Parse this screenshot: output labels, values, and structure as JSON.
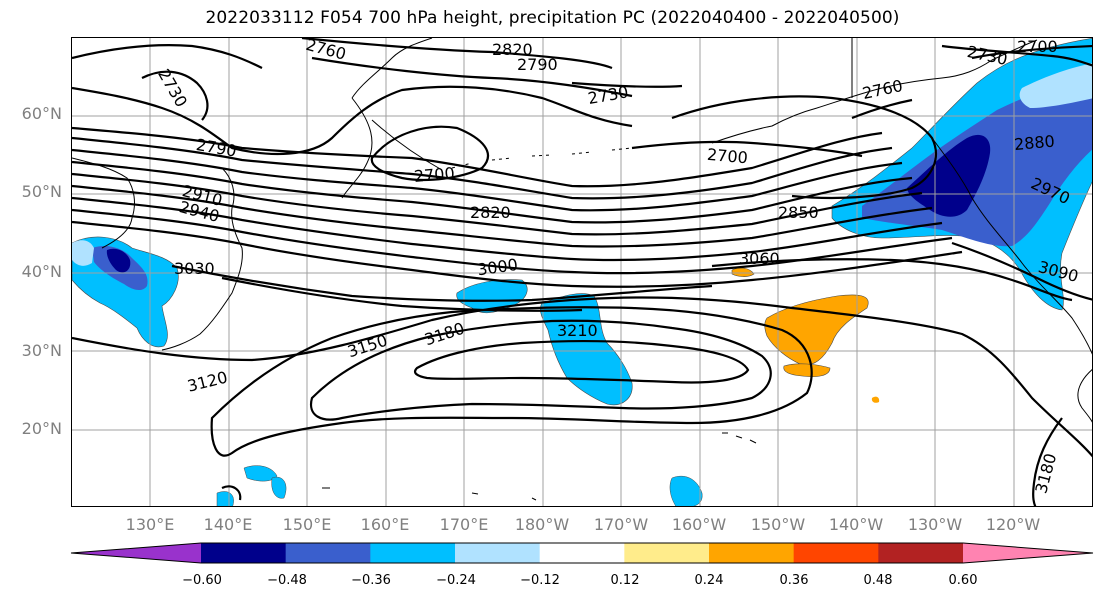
{
  "title": "2022033112 F054 700 hPa height, precipitation PC (2022040400 - 2022040500)",
  "axes": {
    "lat_labels": [
      "60°N",
      "50°N",
      "40°N",
      "30°N",
      "20°N"
    ],
    "lon_labels": [
      "130°E",
      "140°E",
      "150°E",
      "160°E",
      "170°E",
      "180°W",
      "170°W",
      "160°W",
      "150°W",
      "140°W",
      "130°W",
      "120°W"
    ]
  },
  "contour_labels": [
    "2760",
    "2730",
    "2820",
    "2790",
    "2730",
    "2700",
    "2730",
    "2760",
    "2790",
    "2700",
    "2700",
    "2880",
    "2910",
    "2940",
    "2820",
    "2850",
    "2970",
    "3030",
    "3000",
    "3060",
    "3090",
    "3210",
    "3150",
    "3180",
    "3120",
    "3180"
  ],
  "colorbar": {
    "ticks": [
      "−0.60",
      "−0.48",
      "−0.36",
      "−0.24",
      "−0.12",
      "0.12",
      "0.24",
      "0.36",
      "0.48",
      "0.60"
    ],
    "colors": [
      "#9932cc",
      "#00008b",
      "#3a5fcd",
      "#00bfff",
      "#b0e2ff",
      "#ffffff",
      "#ffec8b",
      "#ffa500",
      "#ff4500",
      "#b22222",
      "#ff83b1"
    ]
  }
}
